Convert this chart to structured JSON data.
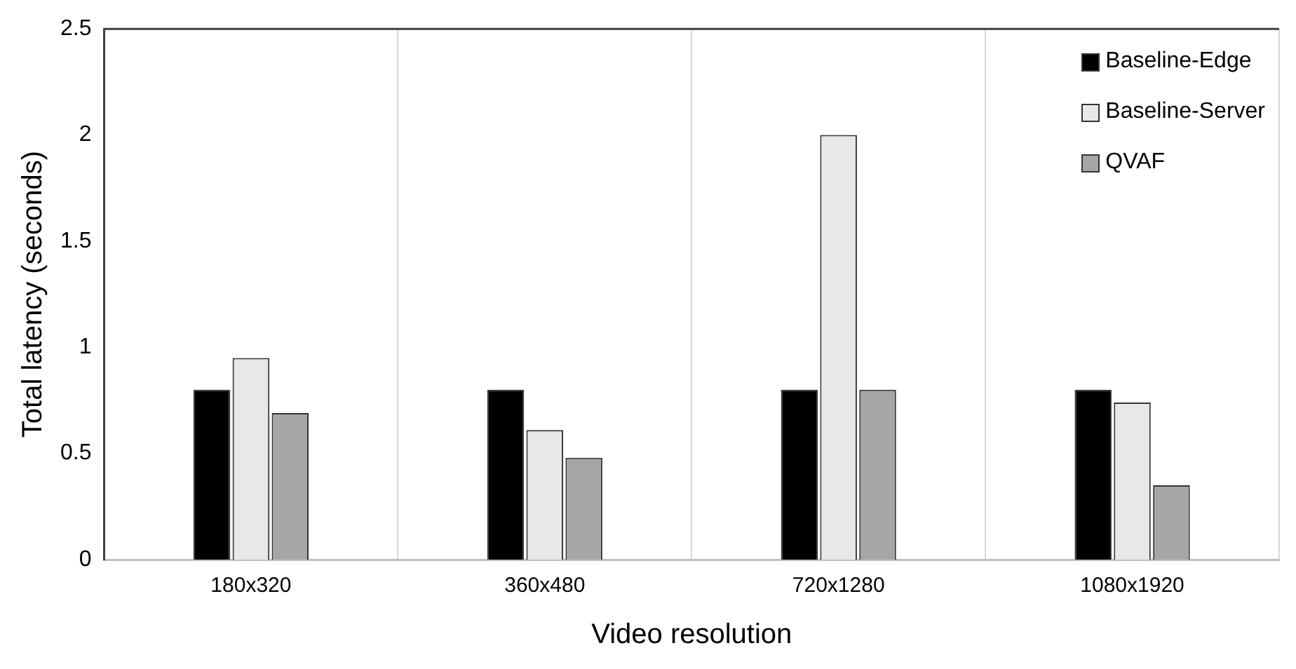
{
  "chart_data": {
    "type": "bar",
    "xlabel": "Video resolution",
    "ylabel": "Total latency (seconds)",
    "categories": [
      "180x320",
      "360x480",
      "720x1280",
      "1080x1920"
    ],
    "series": [
      {
        "name": "Baseline-Edge",
        "color": "#000000",
        "values": [
          0.8,
          0.8,
          0.8,
          0.8
        ]
      },
      {
        "name": "Baseline-Server",
        "color": "#e8e8e8",
        "values": [
          0.95,
          0.61,
          2.0,
          0.74
        ]
      },
      {
        "name": "QVAF",
        "color": "#a6a6a6",
        "values": [
          0.69,
          0.48,
          0.8,
          0.35
        ]
      }
    ],
    "ylim": [
      0,
      2.5
    ],
    "yticks": [
      0,
      0.5,
      1,
      1.5,
      2,
      2.5
    ],
    "grid": "x",
    "legend": "top right"
  }
}
